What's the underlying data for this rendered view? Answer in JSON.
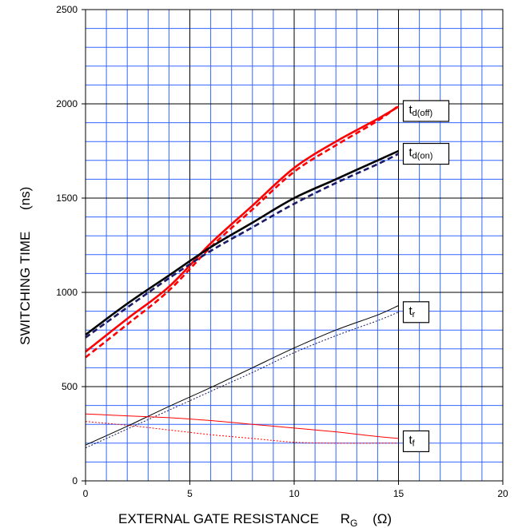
{
  "chart_data": {
    "type": "line",
    "xlabel": "EXTERNAL GATE RESISTANCE",
    "xlabel_symbol": "R",
    "xlabel_sub": "G",
    "xlabel_unit": "(Ω)",
    "ylabel": "SWITCHING TIME",
    "ylabel_unit": "(ns)",
    "xlim": [
      0,
      20
    ],
    "ylim": [
      0,
      2500
    ],
    "xticks": [
      "0",
      "5",
      "10",
      "15",
      "20"
    ],
    "yticks": [
      "0",
      "500",
      "1000",
      "1500",
      "2000",
      "2500"
    ],
    "grid": true,
    "colors": {
      "grid": "#3366ff",
      "red": "#ff0000",
      "black": "#000000",
      "navy": "#1a1a66"
    },
    "series": [
      {
        "label": "td(off)",
        "color": "#ff0000",
        "style": "solid",
        "weight": "thick",
        "points": [
          [
            0,
            685
          ],
          [
            2,
            860
          ],
          [
            4,
            1030
          ],
          [
            6,
            1260
          ],
          [
            8,
            1460
          ],
          [
            10,
            1660
          ],
          [
            12,
            1800
          ],
          [
            14,
            1920
          ],
          [
            15,
            1985
          ]
        ]
      },
      {
        "label": "td(off)",
        "color": "#ff0000",
        "style": "dashed",
        "weight": "thick",
        "points": [
          [
            0,
            655
          ],
          [
            2,
            830
          ],
          [
            4,
            1010
          ],
          [
            6,
            1240
          ],
          [
            8,
            1440
          ],
          [
            10,
            1640
          ],
          [
            12,
            1780
          ],
          [
            14,
            1910
          ],
          [
            15,
            1990
          ]
        ]
      },
      {
        "label": "td(on)",
        "color": "#000000",
        "style": "solid",
        "weight": "thick",
        "points": [
          [
            0,
            775
          ],
          [
            2,
            940
          ],
          [
            4,
            1090
          ],
          [
            6,
            1240
          ],
          [
            8,
            1370
          ],
          [
            10,
            1500
          ],
          [
            12,
            1600
          ],
          [
            14,
            1700
          ],
          [
            15,
            1750
          ]
        ]
      },
      {
        "label": "td(on)",
        "color": "#1a1a66",
        "style": "dashed",
        "weight": "thick",
        "points": [
          [
            0,
            760
          ],
          [
            2,
            920
          ],
          [
            4,
            1075
          ],
          [
            6,
            1220
          ],
          [
            8,
            1345
          ],
          [
            10,
            1470
          ],
          [
            12,
            1580
          ],
          [
            14,
            1680
          ],
          [
            15,
            1735
          ]
        ]
      },
      {
        "label": "tr",
        "color": "#000000",
        "style": "solid",
        "weight": "thin",
        "points": [
          [
            0,
            190
          ],
          [
            2,
            290
          ],
          [
            4,
            395
          ],
          [
            6,
            495
          ],
          [
            8,
            600
          ],
          [
            10,
            705
          ],
          [
            12,
            800
          ],
          [
            14,
            880
          ],
          [
            15,
            930
          ]
        ]
      },
      {
        "label": "tr",
        "color": "#1a1a66",
        "style": "dotted",
        "weight": "thin",
        "points": [
          [
            0,
            175
          ],
          [
            2,
            275
          ],
          [
            4,
            375
          ],
          [
            6,
            475
          ],
          [
            8,
            575
          ],
          [
            10,
            680
          ],
          [
            12,
            770
          ],
          [
            14,
            850
          ],
          [
            15,
            895
          ]
        ]
      },
      {
        "label": "tf",
        "color": "#ff0000",
        "style": "solid",
        "weight": "thin",
        "points": [
          [
            0,
            355
          ],
          [
            2,
            345
          ],
          [
            4,
            335
          ],
          [
            6,
            320
          ],
          [
            8,
            300
          ],
          [
            10,
            280
          ],
          [
            12,
            260
          ],
          [
            14,
            235
          ],
          [
            15,
            225
          ]
        ]
      },
      {
        "label": "tf",
        "color": "#ff0000",
        "style": "dotted",
        "weight": "thin",
        "points": [
          [
            0,
            315
          ],
          [
            2,
            295
          ],
          [
            4,
            270
          ],
          [
            6,
            245
          ],
          [
            8,
            225
          ],
          [
            10,
            205
          ],
          [
            12,
            200
          ],
          [
            14,
            200
          ],
          [
            15,
            200
          ]
        ]
      }
    ],
    "annotations": [
      {
        "main": "t",
        "sub": "d(off)",
        "x": 15,
        "y": 1962
      },
      {
        "main": "t",
        "sub": "d(on)",
        "x": 15,
        "y": 1735
      },
      {
        "main": "t",
        "sub": "r",
        "x": 15,
        "y": 895
      },
      {
        "main": "t",
        "sub": "f",
        "x": 15,
        "y": 210
      }
    ]
  }
}
